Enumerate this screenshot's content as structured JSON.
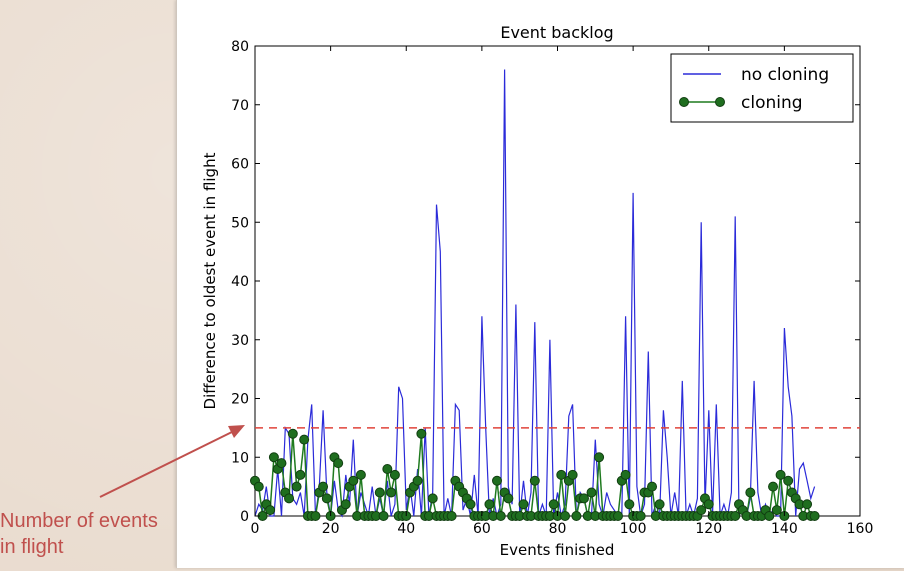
{
  "annotation": {
    "line1": "Number of events",
    "line2": "in flight",
    "color": "#c0504d"
  },
  "chart_data": {
    "type": "line",
    "title": "Event backlog",
    "xlabel": "Events finished",
    "ylabel": "Difference to oldest event in flight",
    "xlim": [
      0,
      160
    ],
    "ylim": [
      0,
      80
    ],
    "xticks": [
      "0",
      "20",
      "40",
      "60",
      "80",
      "100",
      "120",
      "140",
      "160"
    ],
    "yticks": [
      "0",
      "10",
      "20",
      "30",
      "40",
      "50",
      "60",
      "70",
      "80"
    ],
    "grid": false,
    "legend_position": "top-right",
    "reference_line": {
      "y": 15,
      "style": "dashed",
      "color": "#e0433a"
    },
    "series": [
      {
        "name": "no cloning",
        "color": "#2b2bd9",
        "marker": "none",
        "x": [
          0,
          1,
          2,
          3,
          4,
          5,
          6,
          7,
          8,
          9,
          10,
          11,
          12,
          13,
          14,
          15,
          16,
          17,
          18,
          19,
          20,
          21,
          22,
          23,
          24,
          25,
          26,
          27,
          28,
          29,
          30,
          31,
          32,
          33,
          34,
          35,
          36,
          37,
          38,
          39,
          40,
          41,
          42,
          43,
          44,
          45,
          46,
          47,
          48,
          49,
          50,
          51,
          52,
          53,
          54,
          55,
          56,
          57,
          58,
          59,
          60,
          61,
          62,
          63,
          64,
          65,
          66,
          67,
          68,
          69,
          70,
          71,
          72,
          73,
          74,
          75,
          76,
          77,
          78,
          79,
          80,
          81,
          82,
          83,
          84,
          85,
          86,
          87,
          88,
          89,
          90,
          91,
          92,
          93,
          94,
          95,
          96,
          97,
          98,
          99,
          100,
          101,
          102,
          103,
          104,
          105,
          106,
          107,
          108,
          109,
          110,
          111,
          112,
          113,
          114,
          115,
          116,
          117,
          118,
          119,
          120,
          121,
          122,
          123,
          124,
          125,
          126,
          127,
          128,
          129,
          130,
          131,
          132,
          133,
          134,
          135,
          136,
          137,
          138,
          139,
          140,
          141,
          142,
          143,
          144,
          145,
          146,
          147,
          148
        ],
        "y": [
          0,
          2,
          1,
          5,
          0,
          0,
          8,
          0,
          15,
          14,
          3,
          2,
          4,
          0,
          13,
          19,
          0,
          5,
          18,
          4,
          0,
          6,
          1,
          0,
          7,
          2,
          13,
          0,
          4,
          2,
          0,
          5,
          0,
          3,
          0,
          6,
          0,
          2,
          22,
          20,
          1,
          5,
          0,
          8,
          0,
          15,
          0,
          4,
          53,
          45,
          0,
          3,
          0,
          19,
          18,
          1,
          3,
          0,
          7,
          0,
          34,
          15,
          0,
          3,
          0,
          2,
          76,
          5,
          2,
          36,
          0,
          6,
          0,
          4,
          33,
          0,
          2,
          0,
          30,
          0,
          4,
          0,
          2,
          17,
          19,
          0,
          4,
          3,
          0,
          0,
          13,
          2,
          0,
          4,
          2,
          1,
          0,
          0,
          34,
          0,
          55,
          5,
          0,
          2,
          28,
          0,
          2,
          0,
          18,
          10,
          0,
          4,
          0,
          23,
          0,
          2,
          0,
          3,
          50,
          2,
          18,
          0,
          19,
          0,
          2,
          0,
          4,
          51,
          0,
          2,
          0,
          3,
          23,
          4,
          0,
          2,
          0,
          1,
          0,
          0,
          32,
          22,
          17,
          0,
          8,
          9,
          6,
          3,
          5
        ]
      },
      {
        "name": "cloning",
        "color": "#1f7a1f",
        "marker": "circle",
        "x": [
          0,
          1,
          2,
          3,
          4,
          5,
          6,
          7,
          8,
          9,
          10,
          11,
          12,
          13,
          14,
          15,
          16,
          17,
          18,
          19,
          20,
          21,
          22,
          23,
          24,
          25,
          26,
          27,
          28,
          29,
          30,
          31,
          32,
          33,
          34,
          35,
          36,
          37,
          38,
          39,
          40,
          41,
          42,
          43,
          44,
          45,
          46,
          47,
          48,
          49,
          50,
          51,
          52,
          53,
          54,
          55,
          56,
          57,
          58,
          59,
          60,
          61,
          62,
          63,
          64,
          65,
          66,
          67,
          68,
          69,
          70,
          71,
          72,
          73,
          74,
          75,
          76,
          77,
          78,
          79,
          80,
          81,
          82,
          83,
          84,
          85,
          86,
          87,
          88,
          89,
          90,
          91,
          92,
          93,
          94,
          95,
          96,
          97,
          98,
          99,
          100,
          101,
          102,
          103,
          104,
          105,
          106,
          107,
          108,
          109,
          110,
          111,
          112,
          113,
          114,
          115,
          116,
          117,
          118,
          119,
          120,
          121,
          122,
          123,
          124,
          125,
          126,
          127,
          128,
          129,
          130,
          131,
          132,
          133,
          134,
          135,
          136,
          137,
          138,
          139,
          140,
          141,
          142,
          143,
          144,
          145,
          146,
          147,
          148
        ],
        "y": [
          6,
          5,
          0,
          2,
          1,
          10,
          8,
          9,
          4,
          3,
          14,
          5,
          7,
          13,
          0,
          0,
          0,
          4,
          5,
          3,
          0,
          10,
          9,
          1,
          2,
          5,
          6,
          0,
          7,
          0,
          0,
          0,
          0,
          4,
          0,
          8,
          4,
          7,
          0,
          0,
          0,
          4,
          5,
          6,
          14,
          0,
          0,
          3,
          0,
          0,
          0,
          0,
          0,
          6,
          5,
          4,
          3,
          2,
          0,
          0,
          0,
          0,
          2,
          0,
          6,
          0,
          4,
          3,
          0,
          0,
          0,
          2,
          0,
          0,
          6,
          0,
          0,
          0,
          0,
          2,
          0,
          7,
          0,
          6,
          7,
          0,
          3,
          3,
          0,
          4,
          0,
          10,
          0,
          0,
          0,
          0,
          0,
          6,
          7,
          2,
          0,
          0,
          0,
          4,
          4,
          5,
          0,
          2,
          0,
          0,
          0,
          0,
          0,
          0,
          0,
          0,
          0,
          0,
          1,
          3,
          2,
          0,
          0,
          0,
          0,
          0,
          0,
          0,
          2,
          1,
          0,
          4,
          0,
          0,
          0,
          1,
          0,
          5,
          1,
          7,
          0,
          6,
          4,
          3,
          2,
          0,
          2,
          0,
          0
        ]
      }
    ]
  }
}
